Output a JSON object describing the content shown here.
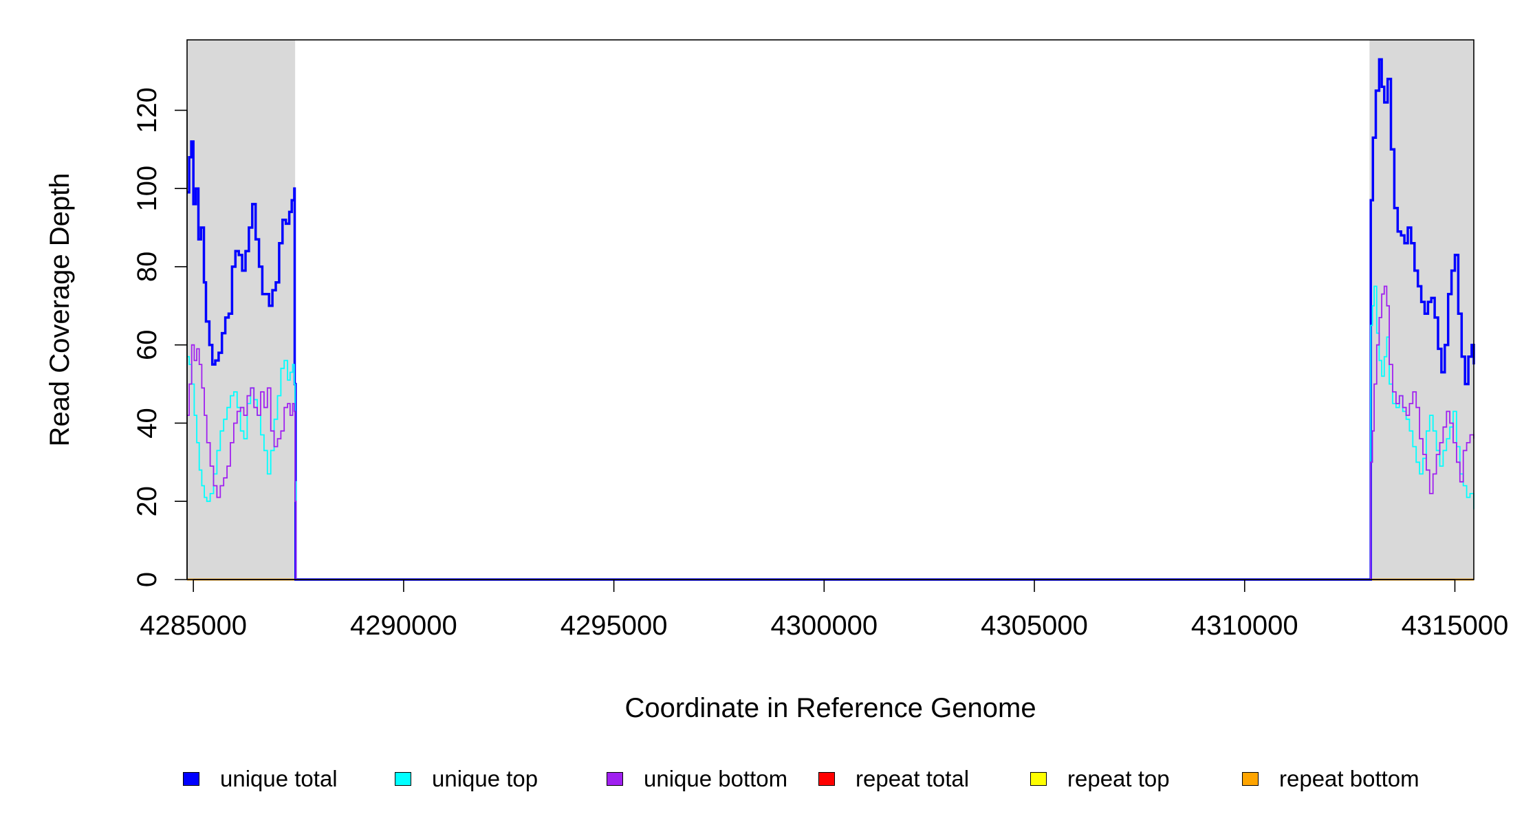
{
  "chart_data": {
    "type": "line",
    "title": "",
    "xlabel": "Coordinate in Reference Genome",
    "ylabel": "Read Coverage Depth",
    "xlim": [
      4284850,
      4315450
    ],
    "ylim": [
      0,
      138
    ],
    "x_ticks": [
      4285000,
      4290000,
      4295000,
      4300000,
      4305000,
      4310000,
      4315000
    ],
    "x_tick_labels": [
      "4285000",
      "4290000",
      "4295000",
      "4300000",
      "4305000",
      "4310000",
      "4315000"
    ],
    "y_ticks": [
      0,
      20,
      40,
      60,
      80,
      100,
      120
    ],
    "y_tick_labels": [
      "0",
      "20",
      "40",
      "60",
      "80",
      "100",
      "120"
    ],
    "shaded_regions": [
      {
        "start": 4284850,
        "end": 4287420
      },
      {
        "start": 4312970,
        "end": 4315450
      }
    ],
    "legend_position": "bottom",
    "grid": false,
    "series": [
      {
        "name": "unique total",
        "color": "#0000ff",
        "x": [
          4284850,
          4284900,
          4284950,
          4285000,
          4285060,
          4285120,
          4285180,
          4285250,
          4285300,
          4285380,
          4285450,
          4285520,
          4285600,
          4285680,
          4285760,
          4285840,
          4285920,
          4286000,
          4286080,
          4286160,
          4286240,
          4286320,
          4286400,
          4286480,
          4286560,
          4286640,
          4286720,
          4286800,
          4286880,
          4286960,
          4287040,
          4287120,
          4287200,
          4287280,
          4287340,
          4287400,
          4287410,
          4287430,
          4312970,
          4313000,
          4313050,
          4313120,
          4313200,
          4313260,
          4313320,
          4313400,
          4313480,
          4313560,
          4313640,
          4313720,
          4313800,
          4313880,
          4313960,
          4314040,
          4314120,
          4314200,
          4314280,
          4314360,
          4314440,
          4314520,
          4314600,
          4314680,
          4314760,
          4314840,
          4314920,
          4315000,
          4315080,
          4315160,
          4315240,
          4315320,
          4315400,
          4315450
        ],
        "y": [
          99,
          108,
          112,
          96,
          100,
          87,
          90,
          76,
          66,
          60,
          55,
          56,
          58,
          63,
          67,
          68,
          80,
          84,
          83,
          79,
          84,
          90,
          96,
          87,
          80,
          73,
          73,
          70,
          74,
          76,
          86,
          92,
          91,
          94,
          97,
          100,
          50,
          0,
          0,
          97,
          113,
          125,
          133,
          126,
          122,
          128,
          110,
          95,
          89,
          88,
          86,
          90,
          86,
          79,
          75,
          71,
          68,
          71,
          72,
          67,
          59,
          53,
          60,
          73,
          79,
          83,
          68,
          57,
          50,
          57,
          60,
          55
        ]
      },
      {
        "name": "unique top",
        "color": "#00ffff",
        "x": [
          4284850,
          4284900,
          4284960,
          4285020,
          4285080,
          4285140,
          4285200,
          4285260,
          4285320,
          4285400,
          4285480,
          4285560,
          4285640,
          4285720,
          4285800,
          4285880,
          4285960,
          4286040,
          4286120,
          4286200,
          4286280,
          4286360,
          4286440,
          4286520,
          4286600,
          4286680,
          4286760,
          4286840,
          4286920,
          4287000,
          4287080,
          4287160,
          4287240,
          4287300,
          4287360,
          4287400,
          4287420,
          4287440,
          4312970,
          4313000,
          4313040,
          4313080,
          4313140,
          4313200,
          4313260,
          4313320,
          4313380,
          4313440,
          4313520,
          4313600,
          4313680,
          4313760,
          4313840,
          4313920,
          4314000,
          4314080,
          4314160,
          4314240,
          4314320,
          4314400,
          4314480,
          4314560,
          4314640,
          4314720,
          4314800,
          4314880,
          4314960,
          4315040,
          4315120,
          4315200,
          4315280,
          4315360,
          4315450
        ],
        "y": [
          57,
          55,
          50,
          42,
          35,
          28,
          24,
          21,
          20,
          22,
          27,
          33,
          38,
          41,
          44,
          47,
          48,
          44,
          38,
          36,
          45,
          49,
          46,
          42,
          37,
          33,
          27,
          33,
          41,
          47,
          54,
          56,
          51,
          53,
          55,
          50,
          25,
          0,
          0,
          65,
          70,
          75,
          63,
          56,
          52,
          57,
          62,
          50,
          45,
          44,
          47,
          43,
          41,
          38,
          34,
          30,
          27,
          31,
          38,
          42,
          38,
          33,
          29,
          33,
          36,
          39,
          43,
          34,
          27,
          24,
          21,
          22,
          18
        ]
      },
      {
        "name": "unique bottom",
        "color": "#a020f0",
        "x": [
          4284850,
          4284900,
          4284960,
          4285020,
          4285080,
          4285140,
          4285200,
          4285260,
          4285320,
          4285400,
          4285480,
          4285560,
          4285640,
          4285720,
          4285800,
          4285880,
          4285960,
          4286040,
          4286120,
          4286200,
          4286280,
          4286360,
          4286440,
          4286520,
          4286600,
          4286680,
          4286760,
          4286840,
          4286920,
          4287000,
          4287080,
          4287160,
          4287240,
          4287300,
          4287360,
          4287400,
          4287420,
          4287440,
          4312970,
          4313000,
          4313040,
          4313080,
          4313140,
          4313200,
          4313260,
          4313320,
          4313380,
          4313440,
          4313520,
          4313600,
          4313680,
          4313760,
          4313840,
          4313920,
          4314000,
          4314080,
          4314160,
          4314240,
          4314320,
          4314400,
          4314480,
          4314560,
          4314640,
          4314720,
          4314800,
          4314880,
          4314960,
          4315040,
          4315120,
          4315200,
          4315280,
          4315360,
          4315450
        ],
        "y": [
          42,
          50,
          60,
          56,
          59,
          55,
          49,
          42,
          35,
          29,
          24,
          21,
          24,
          26,
          29,
          35,
          40,
          43,
          44,
          42,
          47,
          49,
          44,
          42,
          48,
          44,
          49,
          38,
          34,
          36,
          38,
          44,
          45,
          42,
          45,
          43,
          20,
          0,
          0,
          30,
          38,
          50,
          60,
          67,
          73,
          75,
          70,
          55,
          48,
          45,
          47,
          44,
          42,
          45,
          48,
          44,
          36,
          32,
          28,
          22,
          27,
          32,
          35,
          39,
          43,
          40,
          35,
          30,
          25,
          33,
          35,
          37,
          36
        ]
      },
      {
        "name": "repeat total",
        "color": "#ff0000",
        "x": [
          4284850,
          4315450
        ],
        "y": [
          0,
          0
        ]
      },
      {
        "name": "repeat top",
        "color": "#ffff00",
        "x": [
          4284850,
          4315450
        ],
        "y": [
          0,
          0
        ]
      },
      {
        "name": "repeat bottom",
        "color": "#ffa500",
        "x": [
          4284850,
          4315450
        ],
        "y": [
          0,
          0
        ]
      }
    ]
  }
}
